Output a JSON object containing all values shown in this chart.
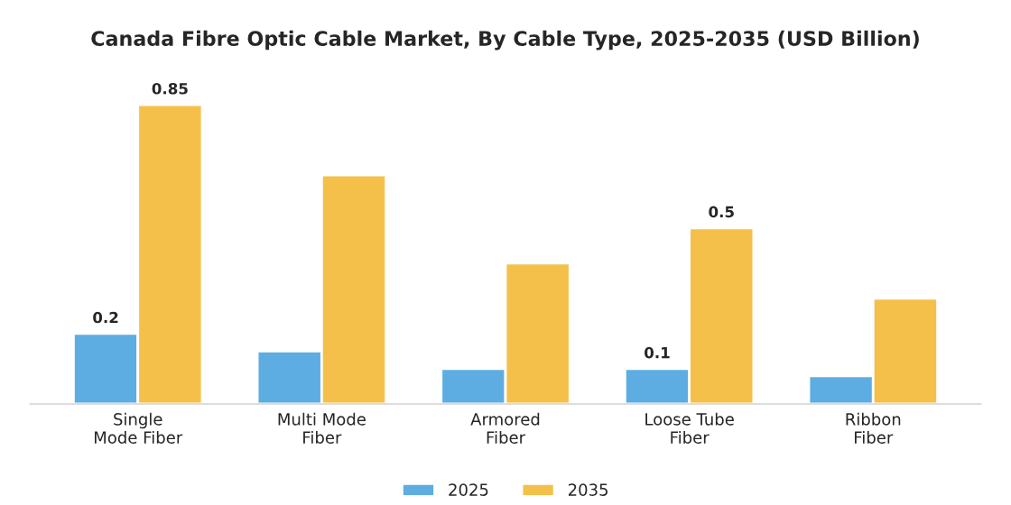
{
  "chart_data": {
    "type": "bar",
    "title": "Canada Fibre Optic Cable Market, By Cable Type, 2025-2035 (USD Billion)",
    "categories": [
      "Single\nMode Fiber",
      "Multi Mode\nFiber",
      "Armored\nFiber",
      "Loose Tube\nFiber",
      "Ribbon\nFiber"
    ],
    "series": [
      {
        "name": "2025",
        "color": "#5dade2",
        "values": [
          0.2,
          0.15,
          0.1,
          0.1,
          0.08
        ],
        "value_labels": [
          "0.2",
          null,
          null,
          "0.1",
          null
        ]
      },
      {
        "name": "2035",
        "color": "#f5c04a",
        "values": [
          0.85,
          0.65,
          0.4,
          0.5,
          0.3
        ],
        "value_labels": [
          "0.85",
          null,
          null,
          "0.5",
          null
        ]
      }
    ],
    "legend": "bottom",
    "grid": false
  }
}
